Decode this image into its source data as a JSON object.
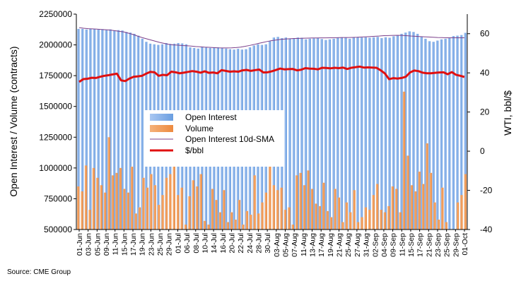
{
  "chart_data": {
    "type": "bar",
    "source_note": "Source: CME Group",
    "ylabel_left": "Open Interest / Volume (contracts)",
    "ylabel_right": "WTI, bbl/$",
    "ylim_left": [
      500000,
      2250000
    ],
    "yticks_left": [
      "2250000",
      "2000000",
      "1750000",
      "1500000",
      "1250000",
      "1000000",
      "750000",
      "500000"
    ],
    "ylim_right": [
      -40,
      70
    ],
    "yticks_right": [
      "60",
      "40",
      "20",
      "0",
      "-20",
      "-40"
    ],
    "legend": {
      "open_interest": "Open Interest",
      "volume": "Volume",
      "sma": "Open Interest 10d-SMA",
      "price": "$/bbl"
    },
    "colors": {
      "open_interest": "#6a9ee0",
      "volume": "#ed8a3f",
      "sma": "#7b3f8a",
      "price": "#e01010"
    },
    "x_tick_labels": [
      "01-Jun",
      "03-Jun",
      "05-Jun",
      "09-Jun",
      "11-Jun",
      "15-Jun",
      "17-Jun",
      "19-Jun",
      "23-Jun",
      "25-Jun",
      "29-Jun",
      "01-Jul",
      "06-Jul",
      "08-Jul",
      "10-Jul",
      "14-Jul",
      "16-Jul",
      "20-Jul",
      "22-Jul",
      "24-Jul",
      "28-Jul",
      "30-Jul",
      "03-Aug",
      "05-Aug",
      "07-Aug",
      "11-Aug",
      "13-Aug",
      "17-Aug",
      "19-Aug",
      "21-Aug",
      "25-Aug",
      "27-Aug",
      "31-Aug",
      "02-Sep",
      "04-Sep",
      "09-Sep",
      "11-Sep",
      "15-Sep",
      "17-Sep",
      "21-Sep",
      "23-Sep",
      "25-Sep",
      "29-Sep",
      "01-Oct"
    ],
    "series": [
      {
        "name": "Open Interest",
        "values": [
          2130000,
          2130000,
          2125000,
          2130000,
          2128000,
          2125000,
          2128000,
          2120000,
          2126000,
          2118000,
          2120000,
          2117000,
          2105000,
          2100000,
          2090000,
          2075000,
          2050000,
          2025000,
          2010000,
          2005000,
          2000000,
          2005000,
          2015000,
          2008000,
          2010000,
          2015000,
          2012000,
          2005000,
          1980000,
          1975000,
          1970000,
          1985000,
          1980000,
          1975000,
          1980000,
          1980000,
          1975000,
          1970000,
          1965000,
          1962000,
          1968000,
          1962000,
          1965000,
          1980000,
          1995000,
          2005000,
          2000000,
          2005000,
          2030000,
          2060000,
          2065000,
          2055000,
          2060000,
          2050000,
          2055000,
          2060000,
          2058000,
          2045000,
          2050000,
          2053000,
          2055000,
          2048000,
          2040000,
          2045000,
          2050000,
          2058000,
          2062000,
          2058000,
          2050000,
          2060000,
          2062000,
          2060000,
          2062000,
          2058000,
          2062000,
          2065000,
          2055000,
          2062000,
          2058000,
          2070000,
          2080000,
          2090000,
          2100000,
          2110000,
          2105000,
          2090000,
          2065000,
          2050000,
          2030000,
          2025000,
          2035000,
          2045000,
          2050000,
          2060000,
          2072000,
          2075000,
          2080000,
          2098000
        ]
      },
      {
        "name": "Volume",
        "values": [
          850000,
          810000,
          1020000,
          660000,
          1000000,
          920000,
          860000,
          800000,
          1250000,
          940000,
          960000,
          1000000,
          830000,
          800000,
          1010000,
          630000,
          680000,
          920000,
          840000,
          950000,
          860000,
          700000,
          780000,
          920000,
          950000,
          1020000,
          780000,
          840000,
          540000,
          770000,
          900000,
          850000,
          950000,
          570000,
          540000,
          830000,
          740000,
          640000,
          820000,
          560000,
          640000,
          580000,
          740000,
          540000,
          650000,
          620000,
          940000,
          630000,
          720000,
          800000,
          1230000,
          860000,
          820000,
          840000,
          660000,
          680000,
          540000,
          940000,
          960000,
          860000,
          980000,
          830000,
          710000,
          690000,
          880000,
          650000,
          600000,
          830000,
          760000,
          560000,
          720000,
          640000,
          820000,
          560000,
          600000,
          680000,
          660000,
          780000,
          870000,
          660000,
          640000,
          690000,
          850000,
          830000,
          640000,
          1620000,
          1100000,
          860000,
          810000,
          970000,
          870000,
          1200000,
          960000,
          720000,
          580000,
          840000,
          560000,
          480000,
          470000,
          720000,
          780000,
          950000
        ]
      },
      {
        "name": "Open Interest 10d-SMA",
        "values": [
          2140000,
          2135000,
          2132000,
          2130000,
          2128000,
          2125000,
          2123000,
          2120000,
          2115000,
          2110000,
          2105000,
          2095000,
          2085000,
          2072000,
          2060000,
          2050000,
          2040000,
          2030000,
          2020000,
          2012000,
          2005000,
          2000000,
          1998000,
          1995000,
          1993000,
          1990000,
          1987000,
          1985000,
          1982000,
          1980000,
          1978000,
          1976000,
          1975000,
          1975000,
          1976000,
          1978000,
          1982000,
          1988000,
          1995000,
          2003000,
          2012000,
          2020000,
          2028000,
          2035000,
          2040000,
          2045000,
          2048000,
          2050000,
          2052000,
          2053000,
          2054000,
          2055000,
          2056000,
          2056000,
          2057000,
          2057000,
          2058000,
          2058000,
          2059000,
          2060000,
          2060000,
          2061000,
          2062000,
          2064000,
          2066000,
          2068000,
          2070000,
          2072000,
          2075000,
          2076000,
          2077000,
          2078000,
          2077000,
          2075000,
          2072000,
          2070000,
          2068000,
          2066000,
          2064000,
          2062000,
          2060000,
          2059000,
          2058000,
          2058000,
          2058000,
          2058000,
          2058000
        ]
      },
      {
        "name": "$/bbl",
        "values": [
          35.4,
          36.8,
          37.0,
          37.5,
          37.4,
          38.0,
          38.5,
          38.8,
          39.2,
          39.6,
          36.2,
          35.8,
          37.1,
          38.0,
          38.2,
          38.5,
          39.6,
          40.5,
          40.3,
          38.5,
          39.0,
          38.8,
          40.6,
          40.3,
          39.8,
          40.1,
          40.5,
          40.9,
          40.6,
          40.1,
          40.8,
          40.0,
          40.2,
          39.8,
          41.4,
          41.0,
          40.6,
          40.8,
          40.6,
          41.3,
          41.5,
          41.0,
          41.4,
          41.7,
          40.2,
          40.3,
          40.8,
          41.5,
          42.2,
          41.8,
          41.9,
          42.0,
          41.3,
          41.6,
          42.4,
          42.2,
          42.1,
          41.8,
          42.6,
          42.5,
          42.3,
          42.6,
          42.4,
          42.7,
          42.0,
          42.6,
          42.9,
          43.2,
          42.7,
          42.8,
          42.7,
          42.6,
          41.3,
          39.7,
          36.8,
          37.3,
          37.1,
          37.4,
          38.0,
          40.2,
          41.2,
          40.9,
          40.1,
          39.8,
          39.8,
          40.0,
          40.2,
          40.3,
          39.3,
          40.4,
          39.0,
          38.5,
          37.9
        ]
      }
    ]
  }
}
